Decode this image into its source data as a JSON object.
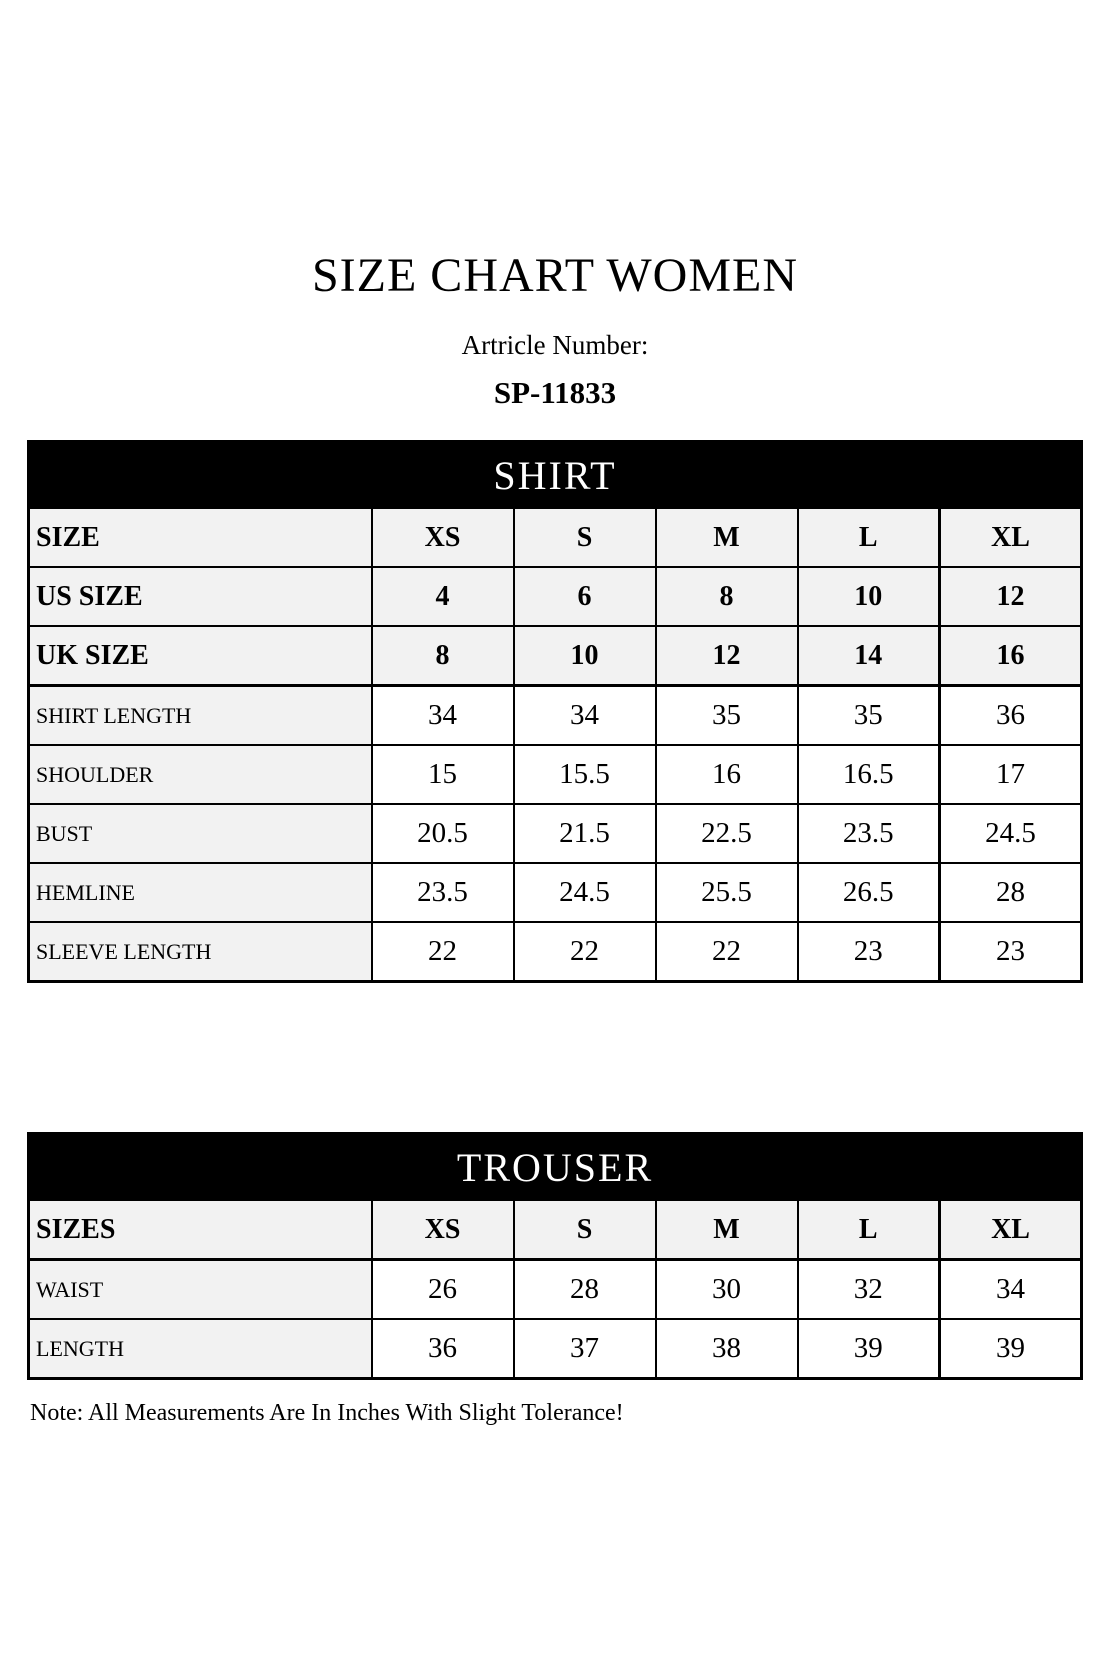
{
  "page": {
    "title": "SIZE CHART WOMEN",
    "article_label": "Artricle Number:",
    "article_number": "SP-11833",
    "note": "Note: All Measurements Are In Inches With Slight Tolerance!"
  },
  "colors": {
    "band_background": "#000000",
    "band_text": "#ffffff",
    "shaded_cell": "#f2f2f2",
    "text": "#000000"
  },
  "shirt_table": {
    "header": "SHIRT",
    "size_rows": [
      {
        "label": "SIZE",
        "values": [
          "XS",
          "S",
          "M",
          "L",
          "XL"
        ]
      },
      {
        "label": "US SIZE",
        "values": [
          "4",
          "6",
          "8",
          "10",
          "12"
        ]
      },
      {
        "label": "UK SIZE",
        "values": [
          "8",
          "10",
          "12",
          "14",
          "16"
        ]
      }
    ],
    "measure_rows": [
      {
        "label": "SHIRT LENGTH",
        "values": [
          "34",
          "34",
          "35",
          "35",
          "36"
        ]
      },
      {
        "label": "SHOULDER",
        "values": [
          "15",
          "15.5",
          "16",
          "16.5",
          "17"
        ]
      },
      {
        "label": "BUST",
        "values": [
          "20.5",
          "21.5",
          "22.5",
          "23.5",
          "24.5"
        ]
      },
      {
        "label": "HEMLINE",
        "values": [
          "23.5",
          "24.5",
          "25.5",
          "26.5",
          "28"
        ]
      },
      {
        "label": "SLEEVE LENGTH",
        "values": [
          "22",
          "22",
          "22",
          "23",
          "23"
        ]
      }
    ]
  },
  "trouser_table": {
    "header": "TROUSER",
    "size_rows": [
      {
        "label": "SIZES",
        "values": [
          "XS",
          "S",
          "M",
          "L",
          "XL"
        ]
      }
    ],
    "measure_rows": [
      {
        "label": "WAIST",
        "values": [
          "26",
          "28",
          "30",
          "32",
          "34"
        ]
      },
      {
        "label": "LENGTH",
        "values": [
          "36",
          "37",
          "38",
          "39",
          "39"
        ]
      }
    ]
  }
}
